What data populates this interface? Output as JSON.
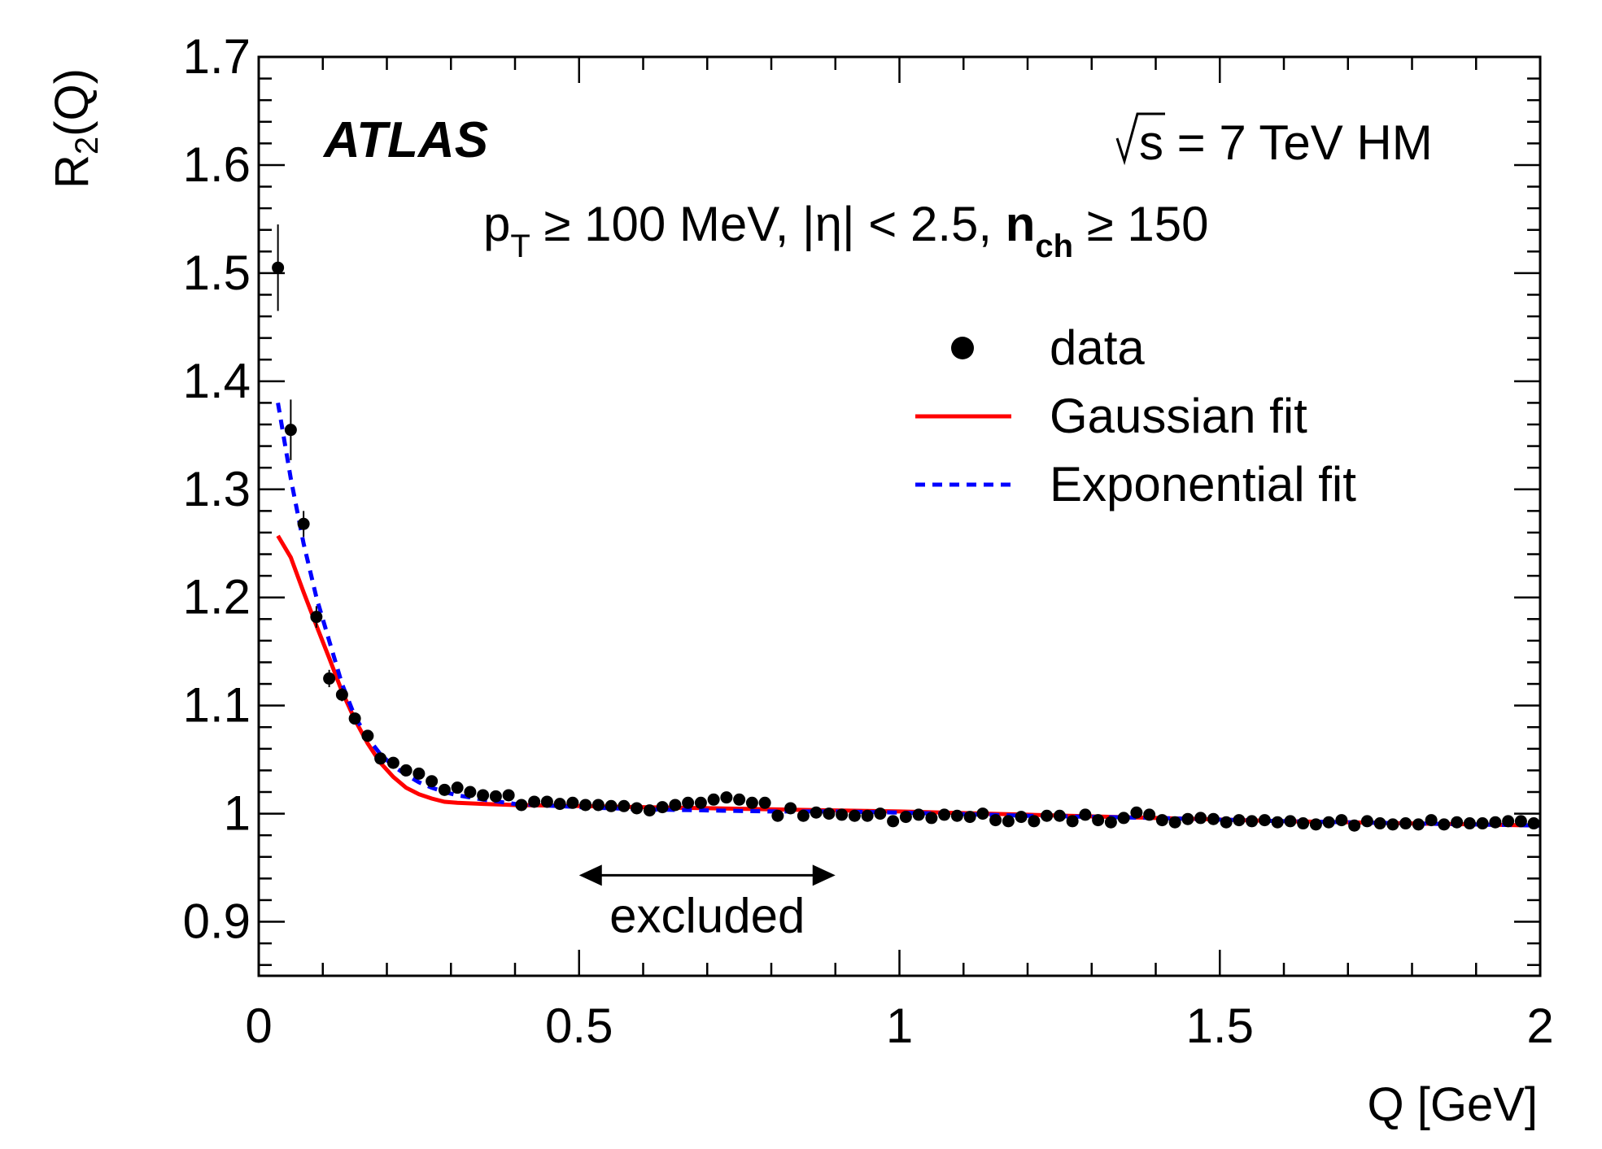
{
  "chart_data": {
    "type": "scatter",
    "title": "",
    "xlabel": "Q [GeV]",
    "ylabel": {
      "main": "R",
      "sub": "2",
      "suffix": "(Q)"
    },
    "xlim": [
      0,
      2
    ],
    "ylim": [
      0.85,
      1.7
    ],
    "x_ticks": [
      0,
      0.5,
      1,
      1.5,
      2
    ],
    "x_tick_labels": [
      "0",
      "0.5",
      "1",
      "1.5",
      "2"
    ],
    "y_ticks": [
      0.9,
      1.0,
      1.1,
      1.2,
      1.3,
      1.4,
      1.5,
      1.6,
      1.7
    ],
    "y_tick_labels": [
      "0.9",
      "1",
      "1.1",
      "1.2",
      "1.3",
      "1.4",
      "1.5",
      "1.6",
      "1.7"
    ],
    "annotations": {
      "experiment": "ATLAS",
      "energy": {
        "sqrt": "s",
        "rest": " = 7 TeV HM"
      },
      "cuts": {
        "pt_main": "p",
        "pt_sub": "T",
        "pt_rest": " ≥ 100 MeV, |η| < 2.5, ",
        "nch_main": "n",
        "nch_sub": "ch",
        "nch_rest": " ≥ 150"
      },
      "excluded": {
        "label": "excluded",
        "x_range": [
          0.5,
          0.9
        ],
        "y": 0.943
      }
    },
    "legend": {
      "position": "top-right",
      "entries": [
        {
          "label": "data",
          "style": "marker"
        },
        {
          "label": "Gaussian fit",
          "style": "solid",
          "color": "#ff0000"
        },
        {
          "label": "Exponential fit",
          "style": "dashed",
          "color": "#0000ff"
        }
      ]
    },
    "series": [
      {
        "name": "data",
        "color": "#000000",
        "x": [
          0.03,
          0.05,
          0.07,
          0.09,
          0.11,
          0.13,
          0.15,
          0.17,
          0.19,
          0.21,
          0.23,
          0.25,
          0.27,
          0.29,
          0.31,
          0.33,
          0.35,
          0.37,
          0.39,
          0.41,
          0.43,
          0.45,
          0.47,
          0.49,
          0.51,
          0.53,
          0.55,
          0.57,
          0.59,
          0.61,
          0.63,
          0.65,
          0.67,
          0.69,
          0.71,
          0.73,
          0.75,
          0.77,
          0.79,
          0.81,
          0.83,
          0.85,
          0.87,
          0.89,
          0.91,
          0.93,
          0.95,
          0.97,
          0.99,
          1.01,
          1.03,
          1.05,
          1.07,
          1.09,
          1.11,
          1.13,
          1.15,
          1.17,
          1.19,
          1.21,
          1.23,
          1.25,
          1.27,
          1.29,
          1.31,
          1.33,
          1.35,
          1.37,
          1.39,
          1.41,
          1.43,
          1.45,
          1.47,
          1.49,
          1.51,
          1.53,
          1.55,
          1.57,
          1.59,
          1.61,
          1.63,
          1.65,
          1.67,
          1.69,
          1.71,
          1.73,
          1.75,
          1.77,
          1.79,
          1.81,
          1.83,
          1.85,
          1.87,
          1.89,
          1.91,
          1.93,
          1.95,
          1.97,
          1.99
        ],
        "values": [
          1.505,
          1.355,
          1.268,
          1.182,
          1.125,
          1.11,
          1.088,
          1.072,
          1.051,
          1.047,
          1.04,
          1.037,
          1.03,
          1.022,
          1.024,
          1.02,
          1.017,
          1.016,
          1.017,
          1.008,
          1.011,
          1.011,
          1.009,
          1.01,
          1.008,
          1.008,
          1.007,
          1.007,
          1.005,
          1.003,
          1.006,
          1.008,
          1.01,
          1.01,
          1.013,
          1.015,
          1.013,
          1.01,
          1.01,
          0.998,
          1.005,
          0.998,
          1.001,
          1.0,
          0.999,
          0.998,
          0.998,
          1.0,
          0.993,
          0.997,
          0.999,
          0.996,
          0.999,
          0.998,
          0.997,
          1.0,
          0.994,
          0.993,
          0.997,
          0.993,
          0.998,
          0.998,
          0.993,
          0.999,
          0.994,
          0.992,
          0.996,
          1.001,
          0.999,
          0.994,
          0.992,
          0.995,
          0.996,
          0.995,
          0.992,
          0.994,
          0.993,
          0.994,
          0.992,
          0.993,
          0.991,
          0.99,
          0.992,
          0.994,
          0.989,
          0.993,
          0.991,
          0.99,
          0.991,
          0.99,
          0.994,
          0.99,
          0.992,
          0.991,
          0.991,
          0.992,
          0.993,
          0.993,
          0.991
        ],
        "errors": [
          0.04,
          0.028,
          0.012,
          0.01,
          0.008,
          0.006,
          0.005,
          0.004,
          0.004,
          0.003,
          0.003,
          0.003,
          0.003,
          0.002,
          0.002,
          0.002,
          0.002,
          0.002,
          0.002,
          0.002,
          0.002,
          0.002,
          0.002,
          0.002,
          0.002,
          0.002,
          0.002,
          0.002,
          0.002,
          0.002,
          0.002,
          0.002,
          0.002,
          0.002,
          0.002,
          0.002,
          0.002,
          0.002,
          0.002,
          0.002,
          0.002,
          0.002,
          0.002,
          0.002,
          0.002,
          0.002,
          0.002,
          0.002,
          0.002,
          0.002,
          0.002,
          0.002,
          0.002,
          0.002,
          0.002,
          0.002,
          0.002,
          0.002,
          0.002,
          0.002,
          0.002,
          0.002,
          0.002,
          0.002,
          0.002,
          0.002,
          0.002,
          0.002,
          0.002,
          0.002,
          0.002,
          0.002,
          0.002,
          0.002,
          0.002,
          0.002,
          0.002,
          0.002,
          0.002,
          0.002,
          0.002,
          0.002,
          0.002,
          0.002,
          0.002,
          0.002,
          0.002,
          0.002,
          0.002,
          0.002,
          0.002,
          0.002,
          0.002,
          0.002,
          0.002,
          0.002,
          0.002,
          0.002,
          0.002
        ]
      },
      {
        "name": "Gaussian fit",
        "color": "#ff0000",
        "style": "solid",
        "x": [
          0.03,
          0.05,
          0.07,
          0.09,
          0.11,
          0.13,
          0.15,
          0.17,
          0.19,
          0.21,
          0.23,
          0.25,
          0.27,
          0.29,
          0.31,
          0.35,
          0.4,
          0.5,
          0.6,
          0.7,
          0.8,
          0.9,
          1.0,
          1.2,
          1.4,
          1.6,
          1.8,
          2.0
        ],
        "values": [
          1.257,
          1.237,
          1.205,
          1.174,
          1.144,
          1.113,
          1.087,
          1.065,
          1.047,
          1.034,
          1.024,
          1.018,
          1.014,
          1.011,
          1.01,
          1.009,
          1.008,
          1.007,
          1.006,
          1.005,
          1.004,
          1.003,
          1.002,
          0.999,
          0.996,
          0.993,
          0.991,
          0.989
        ]
      },
      {
        "name": "Exponential fit",
        "color": "#0000ff",
        "style": "dashed",
        "x": [
          0.03,
          0.05,
          0.07,
          0.09,
          0.11,
          0.13,
          0.15,
          0.17,
          0.19,
          0.21,
          0.23,
          0.25,
          0.27,
          0.29,
          0.31,
          0.35,
          0.4,
          0.5,
          0.6,
          0.7,
          0.8,
          0.9,
          1.0,
          1.2,
          1.4,
          1.6,
          1.8,
          2.0
        ],
        "values": [
          1.38,
          1.31,
          1.25,
          1.2,
          1.16,
          1.12,
          1.09,
          1.07,
          1.055,
          1.044,
          1.036,
          1.029,
          1.024,
          1.02,
          1.017,
          1.013,
          1.009,
          1.006,
          1.004,
          1.003,
          1.002,
          1.002,
          1.001,
          0.998,
          0.996,
          0.993,
          0.991,
          0.989
        ]
      }
    ]
  }
}
